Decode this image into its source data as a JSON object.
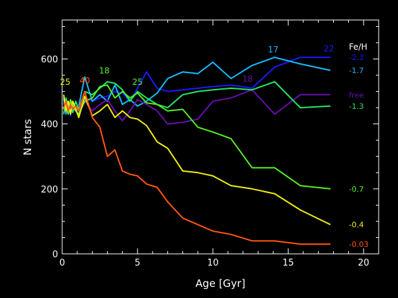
{
  "chart_data": {
    "type": "line",
    "xlabel": "Age [Gyr]",
    "ylabel": "N stars",
    "xlim": [
      0,
      21
    ],
    "ylim": [
      0,
      720
    ],
    "xticks": [
      0,
      5,
      10,
      15,
      20
    ],
    "yticks": [
      0,
      200,
      400,
      600
    ],
    "xtick_labels": [
      "0",
      "5",
      "10",
      "15",
      "20"
    ],
    "ytick_labels": [
      "0",
      "200",
      "400",
      "600"
    ],
    "background": "#000000",
    "axis_color": "#ffffff",
    "grid": false,
    "legend_title": "Fe/H",
    "legend_placement": "right",
    "series": [
      {
        "name": "-2.3",
        "color": "#1a1aff",
        "x": [
          0.1,
          0.25,
          0.4,
          0.55,
          0.7,
          0.9,
          1.1,
          1.5,
          2.0,
          2.5,
          3.0,
          3.5,
          4.0,
          4.5,
          5.0,
          5.6,
          6.3,
          7.0,
          8.0,
          9.0,
          10.0,
          11.2,
          12.6,
          14.1,
          15.8,
          17.8
        ],
        "y": [
          465,
          440,
          470,
          425,
          455,
          445,
          430,
          480,
          470,
          480,
          485,
          500,
          495,
          470,
          510,
          560,
          510,
          500,
          505,
          510,
          515,
          520,
          510,
          575,
          605,
          605
        ]
      },
      {
        "name": "-1.7",
        "color": "#1ab8ff",
        "x": [
          0.1,
          0.25,
          0.4,
          0.55,
          0.7,
          0.9,
          1.1,
          1.5,
          2.0,
          2.5,
          3.0,
          3.5,
          4.0,
          4.5,
          5.0,
          5.6,
          6.3,
          7.0,
          8.0,
          9.0,
          10.0,
          11.2,
          12.6,
          14.1,
          15.8,
          17.8
        ],
        "y": [
          480,
          430,
          470,
          445,
          460,
          440,
          455,
          545,
          470,
          490,
          470,
          520,
          460,
          475,
          455,
          470,
          495,
          540,
          560,
          555,
          590,
          540,
          580,
          605,
          585,
          565
        ]
      },
      {
        "name": "free",
        "color": "#6a0dad",
        "x": [
          0.1,
          0.25,
          0.4,
          0.55,
          0.7,
          0.9,
          1.1,
          1.5,
          2.0,
          2.5,
          3.0,
          3.5,
          4.0,
          4.5,
          5.0,
          5.6,
          6.3,
          7.0,
          8.0,
          9.0,
          10.0,
          11.2,
          12.6,
          14.1,
          15.8,
          17.8
        ],
        "y": [
          460,
          455,
          470,
          440,
          460,
          450,
          455,
          470,
          440,
          460,
          475,
          440,
          410,
          440,
          475,
          460,
          440,
          400,
          405,
          415,
          470,
          480,
          505,
          430,
          490,
          490
        ]
      },
      {
        "name": "-1.3",
        "color": "#22e866",
        "x": [
          0.1,
          0.25,
          0.4,
          0.55,
          0.7,
          0.9,
          1.1,
          1.5,
          2.0,
          2.5,
          3.0,
          3.5,
          4.0,
          4.5,
          5.0,
          5.6,
          6.3,
          7.0,
          8.0,
          9.0,
          10.0,
          11.2,
          12.6,
          14.1,
          15.8,
          17.8
        ],
        "y": [
          430,
          480,
          445,
          470,
          435,
          470,
          445,
          500,
          490,
          510,
          530,
          525,
          505,
          470,
          500,
          480,
          460,
          450,
          490,
          500,
          505,
          510,
          505,
          530,
          450,
          455
        ]
      },
      {
        "name": "-0.7",
        "color": "#55ee22",
        "x": [
          0.1,
          0.25,
          0.4,
          0.55,
          0.7,
          0.9,
          1.1,
          1.5,
          2.0,
          2.5,
          3.0,
          3.5,
          4.0,
          4.5,
          5.0,
          5.6,
          6.3,
          7.0,
          8.0,
          9.0,
          10.0,
          11.2,
          12.6,
          14.1,
          15.8,
          17.8
        ],
        "y": [
          445,
          460,
          430,
          475,
          455,
          440,
          430,
          470,
          480,
          515,
          520,
          480,
          500,
          480,
          495,
          465,
          460,
          440,
          445,
          390,
          375,
          355,
          265,
          265,
          210,
          200
        ]
      },
      {
        "name": "-0.4",
        "color": "#eeee11",
        "x": [
          0.1,
          0.25,
          0.4,
          0.55,
          0.7,
          0.9,
          1.1,
          1.5,
          2.0,
          2.5,
          3.0,
          3.5,
          4.0,
          4.5,
          5.0,
          5.6,
          6.3,
          7.0,
          8.0,
          9.0,
          10.0,
          11.2,
          12.6,
          14.1,
          15.8,
          17.8
        ],
        "y": [
          490,
          440,
          470,
          430,
          470,
          445,
          420,
          485,
          425,
          440,
          460,
          420,
          440,
          420,
          415,
          395,
          345,
          325,
          255,
          250,
          240,
          210,
          200,
          185,
          135,
          90
        ]
      },
      {
        "name": "-0.03",
        "color": "#ff5511",
        "x": [
          0.1,
          0.25,
          0.4,
          0.55,
          0.7,
          0.9,
          1.1,
          1.5,
          2.0,
          2.5,
          3.0,
          3.5,
          4.0,
          4.5,
          5.0,
          5.6,
          6.3,
          7.0,
          8.0,
          9.0,
          10.0,
          11.2,
          12.6,
          14.1,
          15.8,
          17.8
        ],
        "y": [
          450,
          470,
          440,
          460,
          445,
          455,
          440,
          500,
          420,
          390,
          300,
          320,
          255,
          245,
          240,
          215,
          205,
          160,
          110,
          90,
          70,
          60,
          40,
          40,
          30,
          30
        ]
      }
    ],
    "annotations": [
      {
        "text": "25",
        "x": 0.2,
        "y": 520,
        "color": "#eeee11"
      },
      {
        "text": "40",
        "x": 1.5,
        "y": 525,
        "color": "#ff5511"
      },
      {
        "text": "18",
        "x": 2.8,
        "y": 555,
        "color": "#55ee22"
      },
      {
        "text": "25",
        "x": 5.0,
        "y": 520,
        "color": "#55ee22"
      },
      {
        "text": "17",
        "x": 14.0,
        "y": 620,
        "color": "#1ab8ff"
      },
      {
        "text": "22",
        "x": 17.7,
        "y": 623,
        "color": "#1a1aff"
      },
      {
        "text": "18",
        "x": 12.3,
        "y": 530,
        "color": "#6a0dad"
      }
    ]
  }
}
